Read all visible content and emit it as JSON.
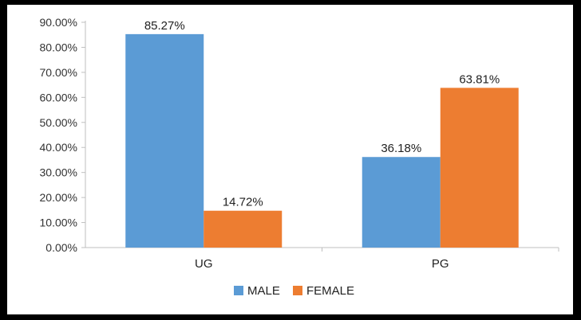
{
  "chart_data": {
    "type": "bar",
    "categories": [
      "UG",
      "PG"
    ],
    "series": [
      {
        "name": "MALE",
        "values": [
          85.27,
          36.18
        ],
        "labels": [
          "85.27%",
          "36.18%"
        ],
        "color": "#5b9bd5"
      },
      {
        "name": "FEMALE",
        "values": [
          14.72,
          63.81
        ],
        "labels": [
          "14.72%",
          "63.81%"
        ],
        "color": "#ed7d31"
      }
    ],
    "ylim": [
      0,
      90
    ],
    "yticks": [
      0,
      10,
      20,
      30,
      40,
      50,
      60,
      70,
      80,
      90
    ],
    "ytick_labels": [
      "0.00%",
      "10.00%",
      "20.00%",
      "30.00%",
      "40.00%",
      "50.00%",
      "60.00%",
      "70.00%",
      "80.00%",
      "90.00%"
    ],
    "grid": false,
    "legend": "bottom"
  }
}
